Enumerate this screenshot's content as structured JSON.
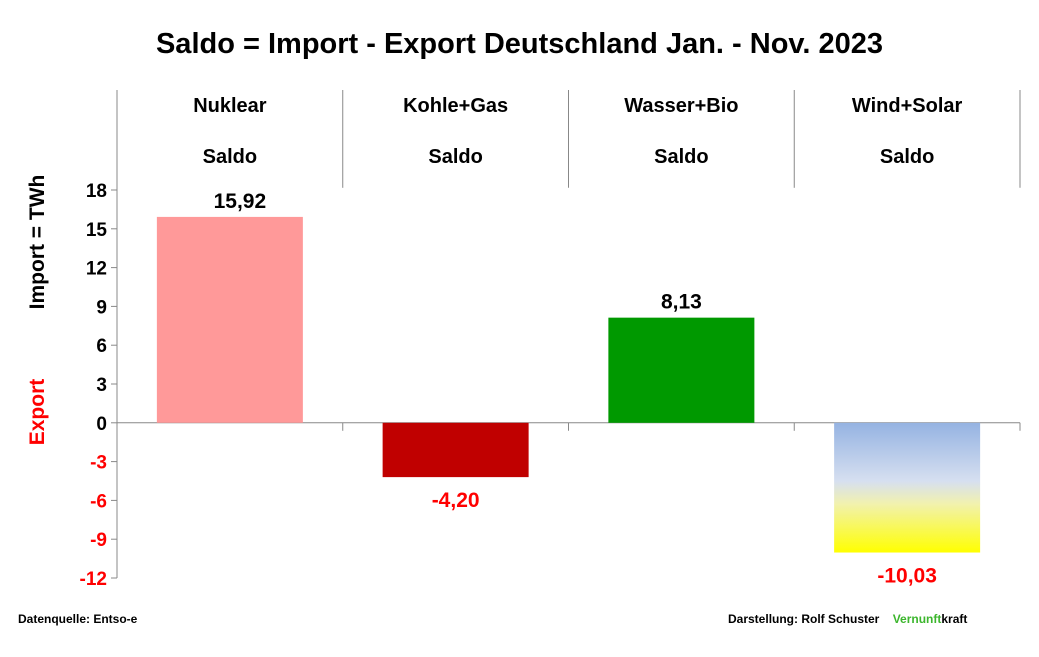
{
  "chart_data": {
    "type": "bar",
    "title": "Saldo = Import - Export Deutschland Jan. - Nov. 2023",
    "categories": [
      "Nuklear",
      "Kohle+Gas",
      "Wasser+Bio",
      "Wind+Solar"
    ],
    "category_sublabels": [
      "Saldo",
      "Saldo",
      "Saldo",
      "Saldo"
    ],
    "values": [
      15.92,
      -4.2,
      8.13,
      -10.03
    ],
    "data_labels": [
      "15,92",
      "-4,20",
      "8,13",
      "-10,03"
    ],
    "bar_colors": [
      "#ff9999",
      "#c00000",
      "#009900",
      "gradient-blue-yellow"
    ],
    "ylabel_positive": "Import =  TWh",
    "ylabel_negative": "Export",
    "ylim": [
      -12,
      18
    ],
    "yticks": [
      18,
      15,
      12,
      9,
      6,
      3,
      0,
      -3,
      -6,
      -9,
      -12
    ],
    "positive_color": "#000000",
    "negative_color": "#ff0000",
    "grid": false
  },
  "footer": {
    "source": "Datenquelle: Entso-e",
    "credit": "Darstellung:  Rolf Schuster",
    "brand_green": "Vernunft",
    "brand_rest": "kraft"
  }
}
